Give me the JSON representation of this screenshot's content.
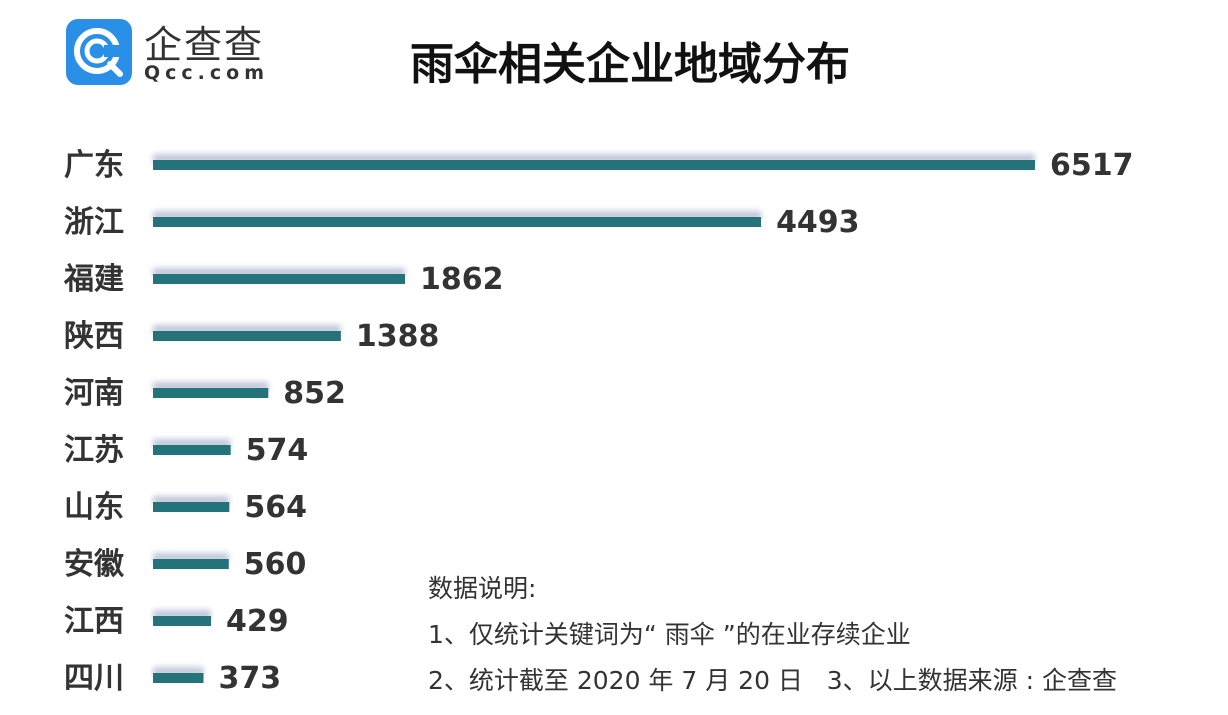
{
  "logo": {
    "name": "企查查",
    "domain": "Qcc.com",
    "color": "#2a8fe6"
  },
  "chart_data": {
    "type": "bar",
    "orientation": "horizontal",
    "title": "雨伞相关企业地域分布",
    "categories": [
      "广东",
      "浙江",
      "福建",
      "陕西",
      "河南",
      "江苏",
      "山东",
      "安徽",
      "江西",
      "四川"
    ],
    "values": [
      6517,
      4493,
      1862,
      1388,
      852,
      574,
      564,
      560,
      429,
      373
    ],
    "bar_color": "#24737a",
    "grid": false,
    "xlabel": "",
    "ylabel": ""
  },
  "notes": {
    "heading": "数据说明:",
    "line1": "1、仅统计关键词为“ 雨伞 ”的在业存续企业",
    "line2": "2、统计截至 2020 年 7 月 20 日   3、以上数据来源 : 企查查"
  }
}
